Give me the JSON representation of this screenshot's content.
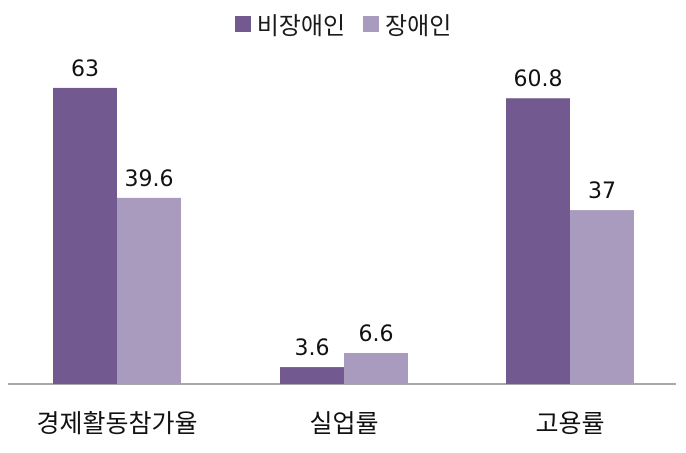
{
  "chart_data": {
    "type": "bar",
    "categories": [
      "경제활동참가율",
      "실업률",
      "고용률"
    ],
    "series": [
      {
        "name": "비장애인",
        "values": [
          63,
          3.6,
          60.8
        ],
        "color": "#725a90"
      },
      {
        "name": "장애인",
        "values": [
          39.6,
          6.6,
          37
        ],
        "color": "#a99bbe"
      }
    ],
    "ylim": [
      0,
      70
    ],
    "grid": false,
    "legend_position": "top-center",
    "data_labels": [
      "63",
      "39.6",
      "3.6",
      "6.6",
      "60.8",
      "37"
    ]
  }
}
